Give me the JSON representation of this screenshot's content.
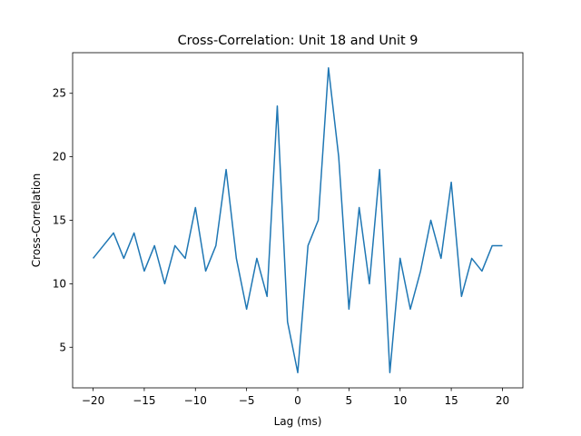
{
  "chart_data": {
    "type": "line",
    "title": "Cross-Correlation: Unit 18 and Unit 9",
    "xlabel": "Lag (ms)",
    "ylabel": "Cross-Correlation",
    "xlim": [
      -22,
      22
    ],
    "ylim": [
      1.8,
      28.2
    ],
    "xticks": [
      -20,
      -15,
      -10,
      -5,
      0,
      5,
      10,
      15,
      20
    ],
    "yticks": [
      5,
      10,
      15,
      20,
      25
    ],
    "xtick_labels": [
      "−20",
      "−15",
      "−10",
      "−5",
      "0",
      "5",
      "10",
      "15",
      "20"
    ],
    "ytick_labels": [
      "5",
      "10",
      "15",
      "20",
      "25"
    ],
    "grid": false,
    "line_color": "#1f77b4",
    "series": [
      {
        "x": [
          -20,
          -19,
          -18,
          -17,
          -16,
          -15,
          -14,
          -13,
          -12,
          -11,
          -10,
          -9,
          -8,
          -7,
          -6,
          -5,
          -4,
          -3,
          -2,
          -1,
          0,
          1,
          2,
          3,
          4,
          5,
          6,
          7,
          8,
          9,
          10,
          11,
          12,
          13,
          14,
          15,
          16,
          17,
          18,
          19,
          20
        ],
        "values": [
          12,
          13,
          14,
          12,
          14,
          11,
          13,
          10,
          13,
          12,
          16,
          11,
          13,
          19,
          12,
          8,
          12,
          9,
          24,
          7,
          3,
          13,
          15,
          27,
          20,
          8,
          16,
          10,
          19,
          3,
          12,
          8,
          11,
          15,
          12,
          18,
          9,
          12,
          11,
          13,
          13
        ]
      }
    ]
  }
}
